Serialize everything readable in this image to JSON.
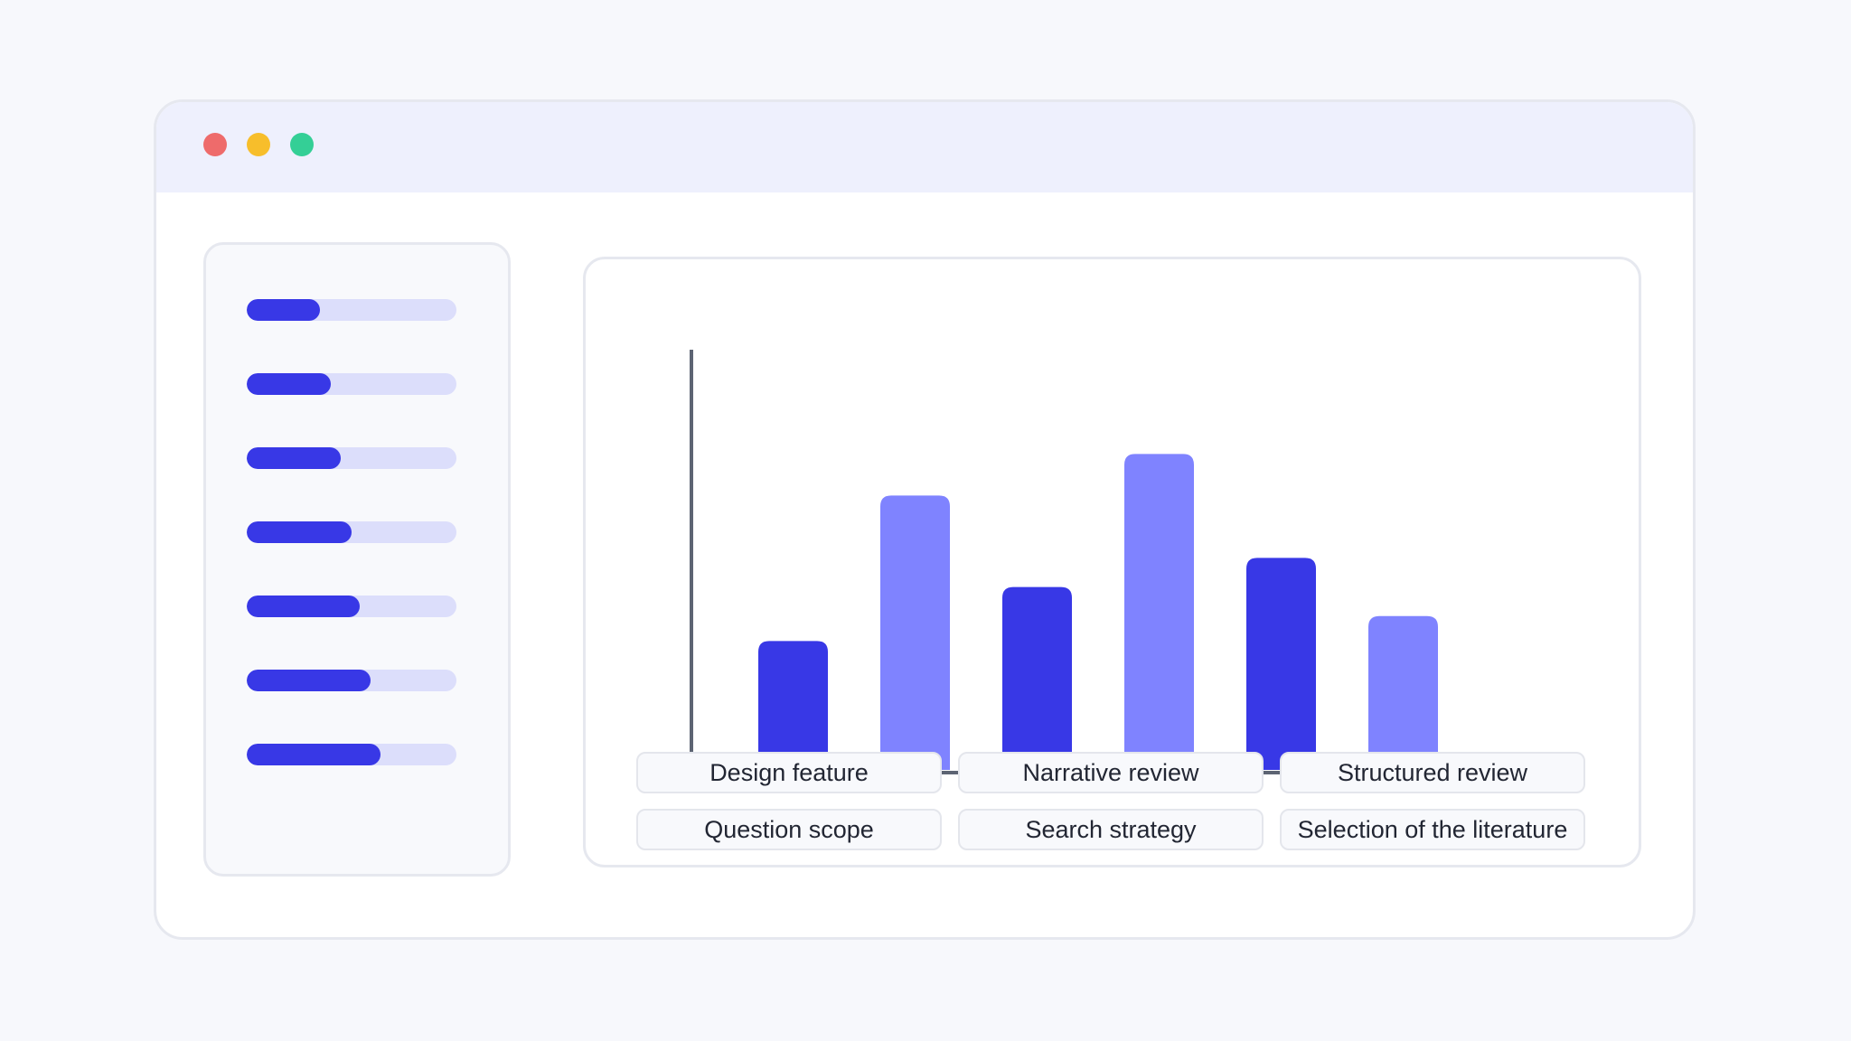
{
  "window": {
    "controls": [
      {
        "name": "close",
        "color": "#ee6b6b"
      },
      {
        "name": "minimize",
        "color": "#f7be2b"
      },
      {
        "name": "maximize",
        "color": "#34cf96"
      }
    ]
  },
  "sidebar": {
    "progress_bars": [
      0.35,
      0.4,
      0.45,
      0.5,
      0.54,
      0.59,
      0.64
    ]
  },
  "chart_data": {
    "type": "bar",
    "values": [
      0.31,
      0.66,
      0.44,
      0.76,
      0.51,
      0.37
    ],
    "ylim": [
      0,
      1
    ],
    "colors": [
      "#3838e6",
      "#7f83ff",
      "#3838e6",
      "#7f83ff",
      "#3838e6",
      "#7f83ff"
    ],
    "labels": [
      "Design feature",
      "Narrative review",
      "Structured review",
      "Question scope",
      "Search strategy",
      "Selection of the literature"
    ]
  }
}
